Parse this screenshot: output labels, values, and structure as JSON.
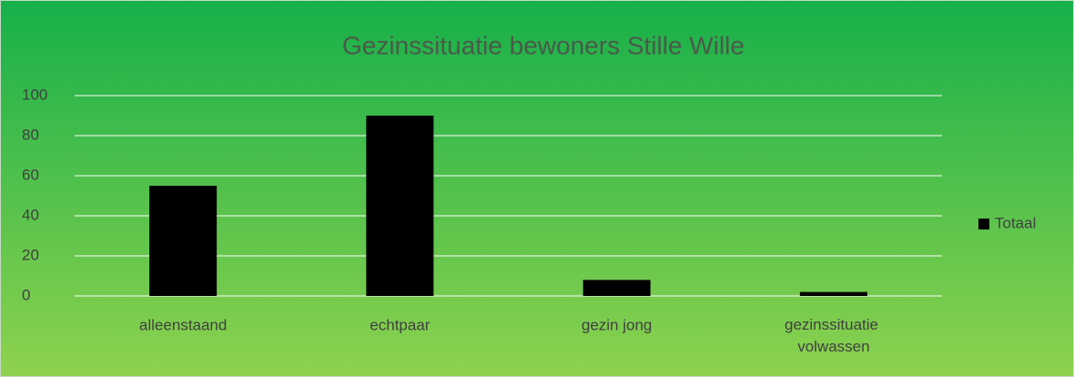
{
  "chart_data": {
    "type": "bar",
    "title": "Gezinssituatie bewoners Stille Wille",
    "categories": [
      "alleenstaand",
      "echtpaar",
      "gezin jong",
      "gezinssituatie volwassen"
    ],
    "series": [
      {
        "name": "Totaal",
        "color": "#000000",
        "values": [
          55,
          90,
          8,
          2
        ]
      }
    ],
    "ylim": [
      0,
      100
    ],
    "yticks": [
      0,
      20,
      40,
      60,
      80,
      100
    ],
    "grid": true,
    "legend": "right"
  }
}
